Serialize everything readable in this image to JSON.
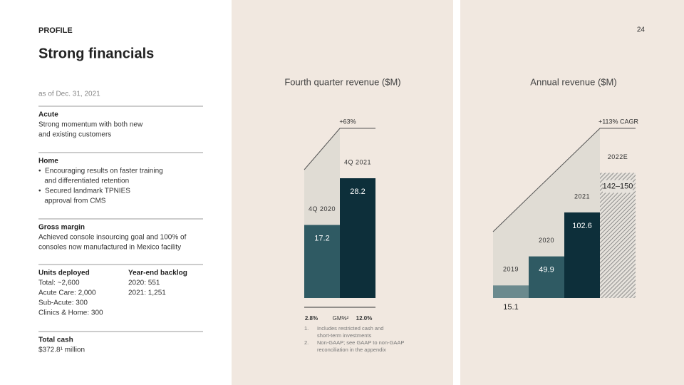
{
  "page_number": "24",
  "header": {
    "eyebrow": "PROFILE",
    "title": "Strong financials",
    "as_of": "as of Dec. 31, 2021"
  },
  "sections": [
    {
      "heading": "Acute",
      "lines": [
        "Strong momentum with both new",
        "and existing customers"
      ]
    },
    {
      "heading": "Home",
      "lines": [
        "•  Encouraging results on faster training",
        "   and differentiated retention",
        "•  Secured landmark TPNIES",
        "   approval from CMS"
      ]
    },
    {
      "heading": "Gross margin",
      "lines": [
        "Achieved console insourcing goal and 100% of",
        "consoles now manufactured in Mexico facility"
      ]
    }
  ],
  "units": {
    "columns": [
      {
        "heading": "Units deployed",
        "lines": [
          "Total: ~2,600",
          "Acute Care: 2,000",
          "Sub-Acute: 300",
          "Clinics & Home: 300"
        ]
      },
      {
        "heading": "Year-end backlog",
        "lines": [
          "2020: 551",
          "2021: 1,251"
        ]
      }
    ]
  },
  "total_cash": {
    "heading": "Total cash",
    "lines": [
      "$372.8¹ million"
    ]
  },
  "chart_data": [
    {
      "type": "bar",
      "title": "Fourth quarter revenue ($M)",
      "categories": [
        "4Q 2020",
        "4Q 2021"
      ],
      "values": [
        17.2,
        28.2
      ],
      "colors": [
        "#2f5a63",
        "#0d2f3a"
      ],
      "annotation": "+63%",
      "gross_margin": {
        "label": "GM%²",
        "values": [
          2.8,
          12.0
        ],
        "value_labels": [
          "2.8%",
          "12.0%"
        ]
      }
    },
    {
      "type": "bar",
      "title": "Annual revenue ($M)",
      "categories": [
        "2019",
        "2020",
        "2021",
        "2022E"
      ],
      "values": [
        15.1,
        49.9,
        102.6,
        [
          142,
          150
        ]
      ],
      "value_labels": [
        "15.1",
        "49.9",
        "102.6",
        "142–150"
      ],
      "colors": [
        "#6b8a8e",
        "#2f5a63",
        "#0d2f3a",
        "hatch"
      ],
      "annotation": "+113% CAGR"
    }
  ],
  "footnotes": [
    {
      "number": "1.",
      "lines": [
        "Includes restricted cash and",
        "short-term investments"
      ]
    },
    {
      "number": "2.",
      "lines": [
        "Non-GAAP; see GAAP to non-GAAP",
        "reconciliation in the appendix"
      ]
    }
  ]
}
